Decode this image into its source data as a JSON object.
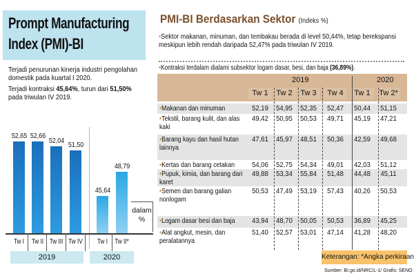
{
  "left": {
    "title_line1": "Prompt Manufacturing",
    "title_line2": "Index (PMI)-BI",
    "desc1": "Terjadi penurunan kinerja industri pengolahan domestik pada kuartal I 2020.",
    "desc2_pre": "Terjadi kontraksi ",
    "desc2_b1": "45,64%",
    "desc2_mid": ", turun dari ",
    "desc2_b2": "51,50%",
    "desc2_post": " pada triwulan IV 2019.",
    "unit_line1": "dalam",
    "unit_line2": "%"
  },
  "chart_data": {
    "type": "bar",
    "title": "Prompt Manufacturing Index (PMI)-BI",
    "ylabel": "dalam %",
    "categories": [
      "Tw I",
      "Tw II",
      "Tw III",
      "Tw IV",
      "Tw I",
      "Tw II*"
    ],
    "groups": [
      {
        "label": "2019",
        "indices": [
          0,
          1,
          2,
          3
        ]
      },
      {
        "label": "2020",
        "indices": [
          4,
          5
        ]
      }
    ],
    "values": [
      52.65,
      52.66,
      52.04,
      51.5,
      45.64,
      48.79
    ],
    "labels": [
      "52,65",
      "52,66",
      "52,04",
      "51,50",
      "45,64",
      "48,79"
    ],
    "colors": {
      "y2019": "#1a6fba",
      "y2020": "#2aa8e4"
    }
  },
  "right": {
    "title": "PMI-BI Berdasarkan Sektor",
    "title_unit": "(Indeks %)",
    "note1": "Sektor makanan, minuman, dan tembakau berada di level 50,44%, tetap berekspansi meskipun lebih rendah daripada 52,47% pada triwulan IV 2019.",
    "note2_pre": "Kontraksi terdalam dialami subsektor logam dasar, besi, dan baja ",
    "note2_b": "(36,89%)",
    "note2_post": ".",
    "years": [
      "2019",
      "2020"
    ],
    "headers": [
      "Tw 1",
      "Tw 2",
      "Tw 3",
      "Tw 4",
      "Tw 1",
      "Tw 2*"
    ],
    "rows": [
      {
        "label": "Makanan dan minuman",
        "v": [
          "52,19",
          "54,95",
          "52,35",
          "52,47",
          "50,44",
          "51,15"
        ]
      },
      {
        "label": "Tekstil, barang kulit, dan alas kaki",
        "v": [
          "49,42",
          "50,95",
          "50,53",
          "49,71",
          "45,19",
          "47,21"
        ]
      },
      {
        "label": "Barang kayu dan hasil hutan lainnya",
        "v": [
          "47,61",
          "45,97",
          "48,51",
          "50,36",
          "42,59",
          "49,68"
        ]
      },
      {
        "label": "Kertas dan barang cetakan",
        "v": [
          "54,06",
          "52,75",
          "54,34",
          "49,01",
          "42,03",
          "51,12"
        ]
      },
      {
        "label": "Pupuk, kimia, dan barang dari karet",
        "v": [
          "49,88",
          "53,34",
          "55,84",
          "51,48",
          "44,48",
          "45,11"
        ]
      },
      {
        "label": "Semen dan barang galian nonlogam",
        "v": [
          "50,53",
          "47,49",
          "53,19",
          "57,43",
          "40,26",
          "50,53"
        ]
      },
      {
        "label": "Logam dasar besi dan baja",
        "v": [
          "43,94",
          "48,70",
          "50,05",
          "50,53",
          "36,89",
          "45,25"
        ]
      },
      {
        "label": "Alat angkut, mesin, dan peralatannya",
        "v": [
          "51,40",
          "52,57",
          "53,01",
          "47,14",
          "41,28",
          "48,20"
        ]
      }
    ],
    "keterangan": "Keterangan: *Angka perkiraan",
    "source": "Sumber: BI.go.id/NRC/L-1/ Grafis: SENO"
  }
}
